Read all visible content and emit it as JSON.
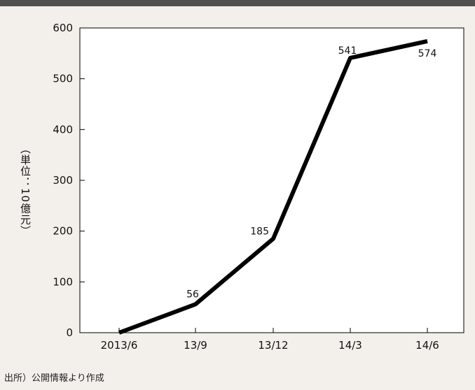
{
  "chart_data": {
    "type": "line",
    "categories": [
      "2013/6",
      "13/9",
      "13/12",
      "14/3",
      "14/6"
    ],
    "series": [
      {
        "values": [
          0,
          56,
          185,
          541,
          574
        ]
      }
    ],
    "data_labels": [
      "",
      "56",
      "185",
      "541",
      "574"
    ],
    "ylabel": "（単位：10億元）",
    "ylim": [
      0,
      600
    ],
    "yticks": [
      0,
      100,
      200,
      300,
      400,
      500,
      600
    ],
    "grid": false,
    "line_color": "#000000"
  },
  "source_note": "出所）公開情報より作成",
  "colors": {
    "background": "#f3f0ec",
    "top_bar": "#505050",
    "plot_bg": "#ffffff"
  }
}
